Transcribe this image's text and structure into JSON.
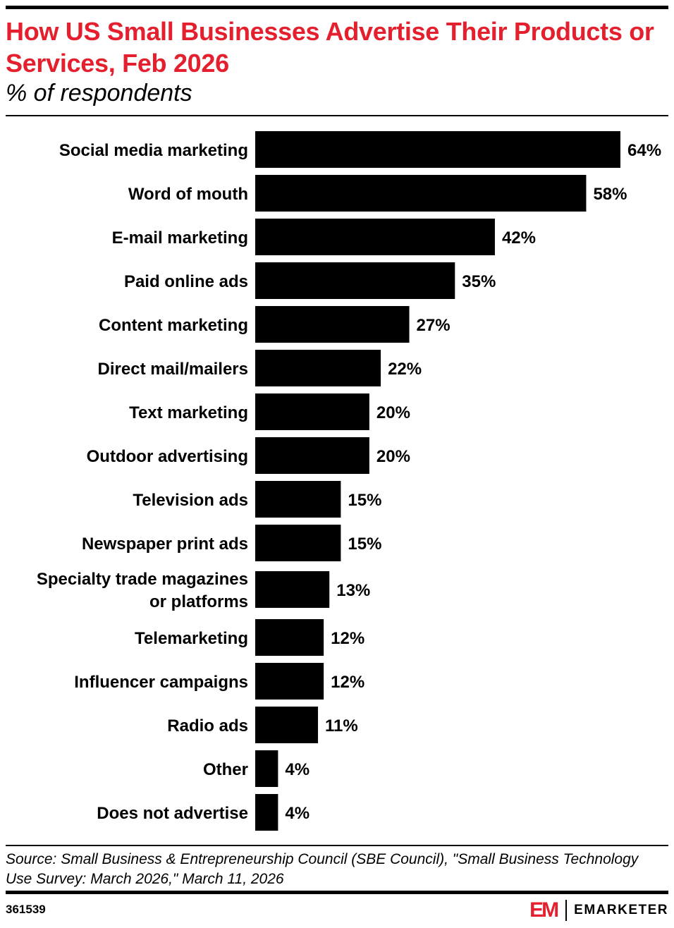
{
  "header": {
    "title": "How US Small Businesses Advertise Their Products or Services, Feb 2026",
    "subtitle": "% of respondents"
  },
  "footer": {
    "source": "Source: Small Business & Entrepreneurship Council (SBE Council), \"Small Business Technology Use Survey: March 2026,\" March 11, 2026",
    "chart_id": "361539",
    "logo_mark": "EM",
    "logo_text": "EMARKETER"
  },
  "colors": {
    "accent": "#e5202e",
    "bar": "#000000"
  },
  "chart_data": {
    "type": "bar",
    "orientation": "horizontal",
    "title": "How US Small Businesses Advertise Their Products or Services, Feb 2026",
    "subtitle": "% of respondents",
    "categories": [
      "Social media marketing",
      "Word of mouth",
      "E-mail marketing",
      "Paid online ads",
      "Content marketing",
      "Direct mail/mailers",
      "Text marketing",
      "Outdoor advertising",
      "Television ads",
      "Newspaper print ads",
      "Specialty trade magazines or platforms",
      "Telemarketing",
      "Influencer campaigns",
      "Radio ads",
      "Other",
      "Does not advertise"
    ],
    "category_lines": [
      [
        "Social media marketing"
      ],
      [
        "Word of mouth"
      ],
      [
        "E-mail marketing"
      ],
      [
        "Paid online ads"
      ],
      [
        "Content marketing"
      ],
      [
        "Direct mail/mailers"
      ],
      [
        "Text marketing"
      ],
      [
        "Outdoor advertising"
      ],
      [
        "Television ads"
      ],
      [
        "Newspaper print ads"
      ],
      [
        "Specialty trade magazines",
        "or platforms"
      ],
      [
        "Telemarketing"
      ],
      [
        "Influencer campaigns"
      ],
      [
        "Radio ads"
      ],
      [
        "Other"
      ],
      [
        "Does not advertise"
      ]
    ],
    "values": [
      64,
      58,
      42,
      35,
      27,
      22,
      20,
      20,
      15,
      15,
      13,
      12,
      12,
      11,
      4,
      4
    ],
    "value_labels": [
      "64%",
      "58%",
      "42%",
      "35%",
      "27%",
      "22%",
      "20%",
      "20%",
      "15%",
      "15%",
      "13%",
      "12%",
      "12%",
      "11%",
      "4%",
      "4%"
    ],
    "xlim": [
      0,
      64
    ],
    "grid": false,
    "legend": "none"
  }
}
